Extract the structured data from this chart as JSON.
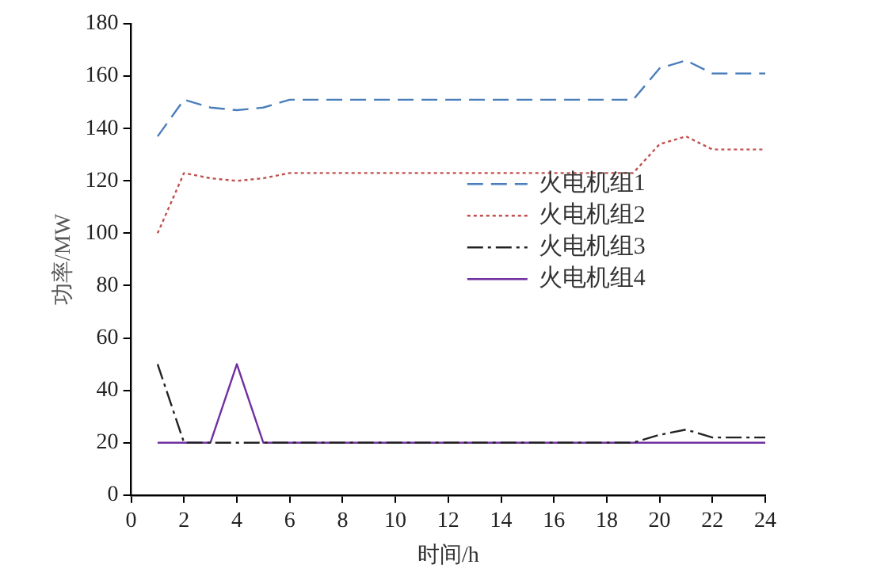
{
  "chart_data": {
    "type": "line",
    "xlabel": "时间/h",
    "ylabel": "功率/MW",
    "x": [
      1,
      2,
      3,
      4,
      5,
      6,
      7,
      8,
      9,
      10,
      11,
      12,
      13,
      14,
      15,
      16,
      17,
      18,
      19,
      20,
      21,
      22,
      23,
      24
    ],
    "xlim": [
      0,
      24
    ],
    "xticks": [
      0,
      2,
      4,
      6,
      8,
      10,
      12,
      14,
      16,
      18,
      20,
      22,
      24
    ],
    "ylim": [
      0,
      180
    ],
    "yticks": [
      0,
      20,
      40,
      60,
      80,
      100,
      120,
      140,
      160,
      180
    ],
    "grid": false,
    "legend": "right",
    "marker": "none",
    "series": [
      {
        "name": "火电机组1",
        "color": "#4a7ebb",
        "line_style": "dashed",
        "values": [
          137,
          151,
          148,
          147,
          148,
          151,
          151,
          151,
          151,
          151,
          151,
          151,
          151,
          151,
          151,
          151,
          151,
          151,
          151,
          163,
          166,
          161,
          161,
          161
        ]
      },
      {
        "name": "火电机组2",
        "color": "#c0504d",
        "line_style": "dotted",
        "values": [
          100,
          123,
          121,
          120,
          121,
          123,
          123,
          123,
          123,
          123,
          123,
          123,
          123,
          123,
          123,
          123,
          123,
          123,
          123,
          134,
          137,
          132,
          132,
          132
        ]
      },
      {
        "name": "火电机组3",
        "color": "#222222",
        "line_style": "dashdot",
        "values": [
          50,
          20,
          20,
          20,
          20,
          20,
          20,
          20,
          20,
          20,
          20,
          20,
          20,
          20,
          20,
          20,
          20,
          20,
          20,
          23,
          25,
          22,
          22,
          22
        ]
      },
      {
        "name": "火电机组4",
        "color": "#7030a0",
        "line_style": "solid",
        "values": [
          20,
          20,
          20,
          50,
          20,
          20,
          20,
          20,
          20,
          20,
          20,
          20,
          20,
          20,
          20,
          20,
          20,
          20,
          20,
          20,
          20,
          20,
          20,
          20
        ]
      }
    ]
  }
}
